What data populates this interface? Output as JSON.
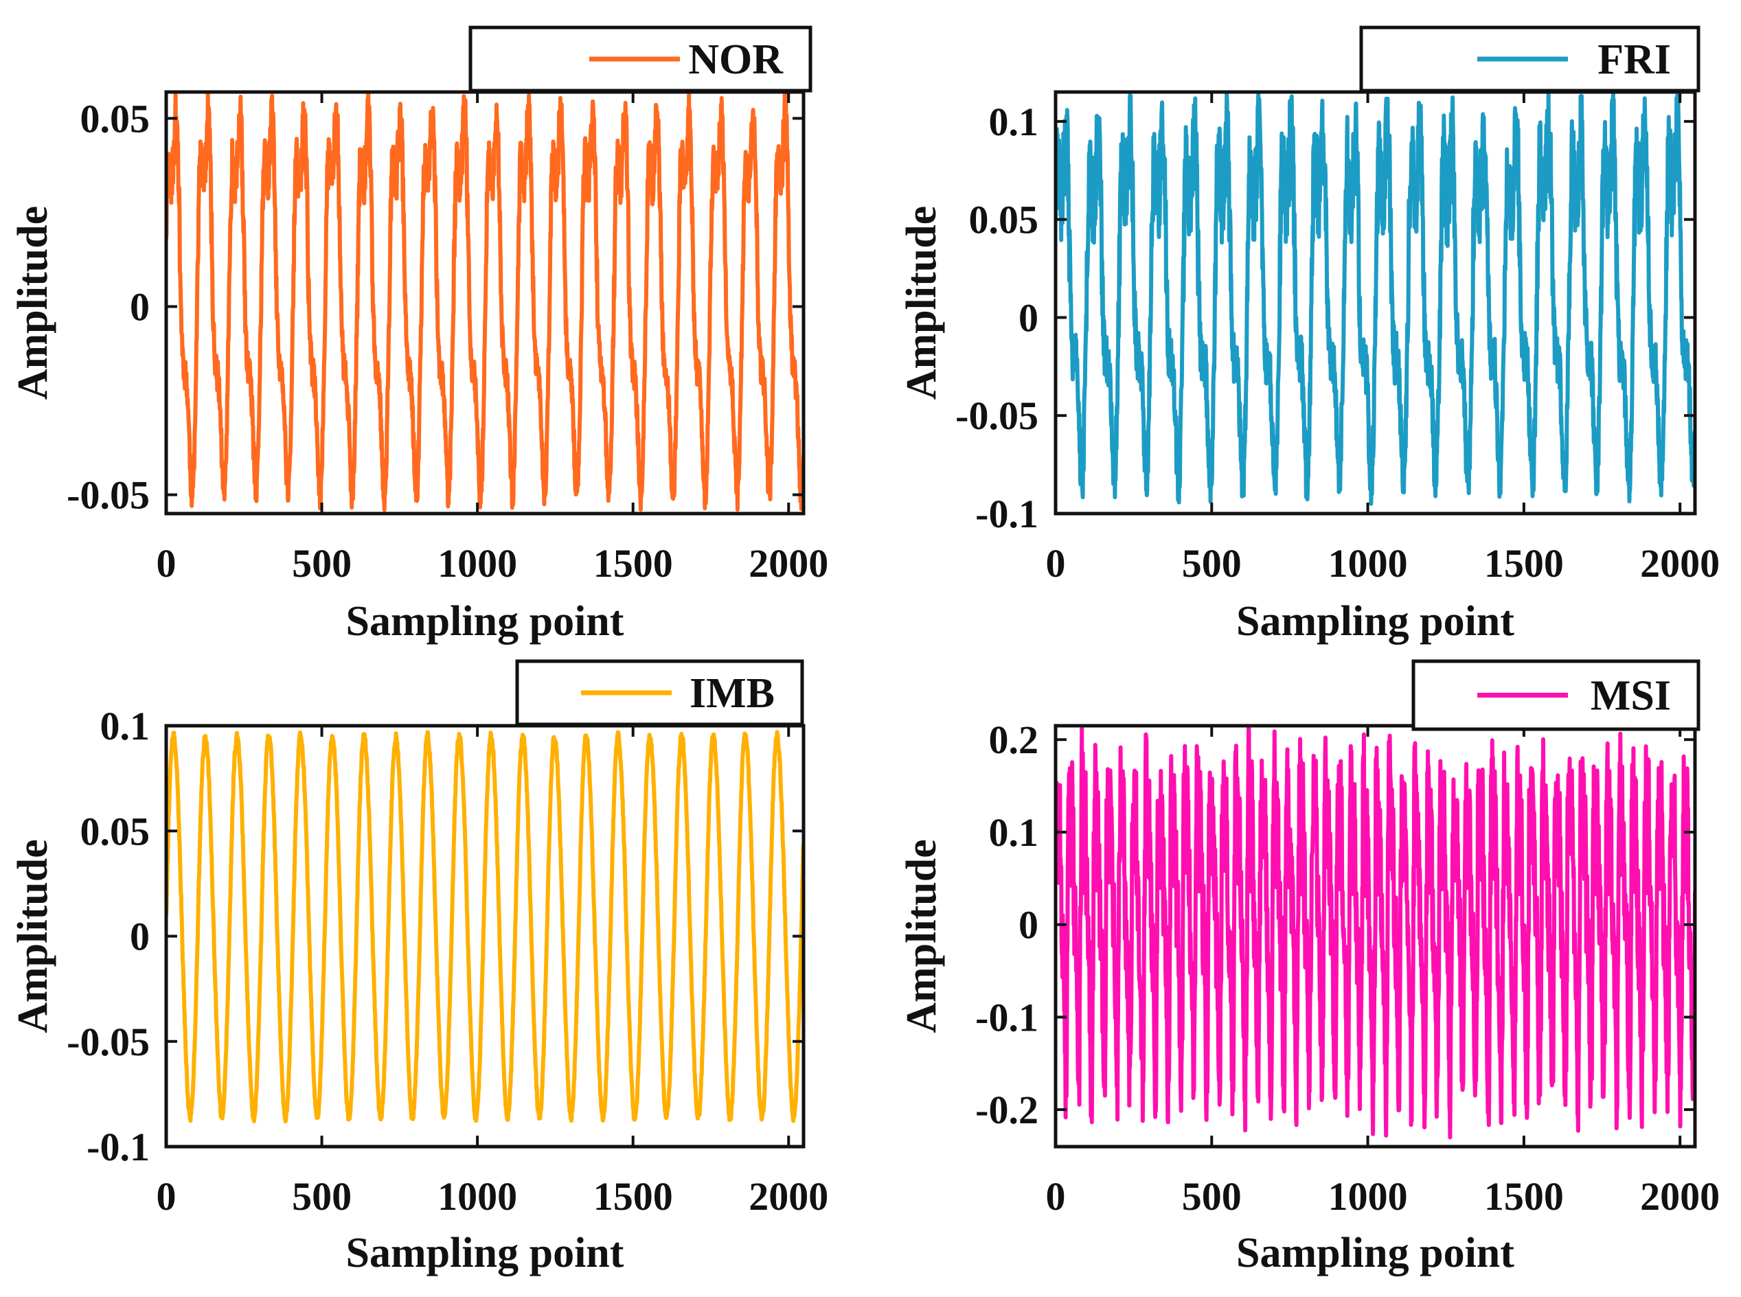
{
  "chart_data": [
    {
      "type": "line",
      "legend": "NOR",
      "legend_position": "top-right-outside",
      "color": "#FF6A1F",
      "xlabel": "Sampling point",
      "ylabel": "Amplitude",
      "xlim": [
        0,
        2048
      ],
      "ylim": [
        -0.055,
        0.057
      ],
      "xticks": [
        0,
        500,
        1000,
        1500,
        2000
      ],
      "xtick_labels": [
        "0",
        "500",
        "1000",
        "1500",
        "2000"
      ],
      "yticks": [
        -0.05,
        0,
        0.05
      ],
      "ytick_labels": [
        "-0.05",
        "0",
        "0.05"
      ],
      "signal": {
        "n": 2048,
        "period": 103,
        "amp": 0.034,
        "h2": 0.006,
        "h3": 0.009,
        "noise": 0.004,
        "offset": -0.003,
        "peak_max": 0.057,
        "trough_min": -0.054,
        "seed": 11
      }
    },
    {
      "type": "line",
      "legend": "FRI",
      "legend_position": "top-right-outside",
      "color": "#1C9CC4",
      "xlabel": "Sampling point",
      "ylabel": "Amplitude",
      "xlim": [
        0,
        2048
      ],
      "ylim": [
        -0.1,
        0.115
      ],
      "xticks": [
        0,
        500,
        1000,
        1500,
        2000
      ],
      "xtick_labels": [
        "0",
        "500",
        "1000",
        "1500",
        "2000"
      ],
      "yticks": [
        -0.1,
        -0.05,
        0,
        0.05,
        0.1
      ],
      "ytick_labels": [
        "-0.1",
        "-0.05",
        "0",
        "0.05",
        "0.1"
      ],
      "signal": {
        "n": 2048,
        "period": 103,
        "amp": 0.052,
        "h2": 0.012,
        "h3": 0.018,
        "noise": 0.012,
        "offset": 0.0,
        "peak_max": 0.115,
        "trough_min": -0.095,
        "seed": 23
      }
    },
    {
      "type": "line",
      "legend": "IMB",
      "legend_position": "top-right-outside",
      "color": "#FFB000",
      "xlabel": "Sampling point",
      "ylabel": "Amplitude",
      "xlim": [
        0,
        2048
      ],
      "ylim": [
        -0.1,
        0.1
      ],
      "xticks": [
        0,
        500,
        1000,
        1500,
        2000
      ],
      "xtick_labels": [
        "0",
        "500",
        "1000",
        "1500",
        "2000"
      ],
      "yticks": [
        -0.1,
        -0.05,
        0,
        0.05,
        0.1
      ],
      "ytick_labels": [
        "-0.1",
        "-0.05",
        "0",
        "0.05",
        "0.1"
      ],
      "signal": {
        "n": 2048,
        "period": 102,
        "amp": 0.083,
        "h2": 0.004,
        "h3": 0.0,
        "noise": 0.002,
        "offset": 0.0,
        "peak_max": 0.097,
        "trough_min": -0.088,
        "seed": 37
      }
    },
    {
      "type": "line",
      "legend": "MSI",
      "legend_position": "top-right-outside",
      "color": "#FF0FB0",
      "xlabel": "Sampling point",
      "ylabel": "Amplitude",
      "xlim": [
        0,
        2048
      ],
      "ylim": [
        -0.24,
        0.215
      ],
      "xticks": [
        0,
        500,
        1000,
        1500,
        2000
      ],
      "xtick_labels": [
        "0",
        "500",
        "1000",
        "1500",
        "2000"
      ],
      "yticks": [
        -0.2,
        -0.1,
        0,
        0.1,
        0.2
      ],
      "ytick_labels": [
        "-0.2",
        "-0.1",
        "0",
        "0.1",
        "0.2"
      ],
      "signal": {
        "n": 2048,
        "period": 41,
        "amp": 0.075,
        "h2": 0.03,
        "h3": 0.02,
        "noise": 0.035,
        "offset": 0.0,
        "peak_max": 0.215,
        "trough_min": -0.23,
        "seed": 53
      }
    }
  ]
}
